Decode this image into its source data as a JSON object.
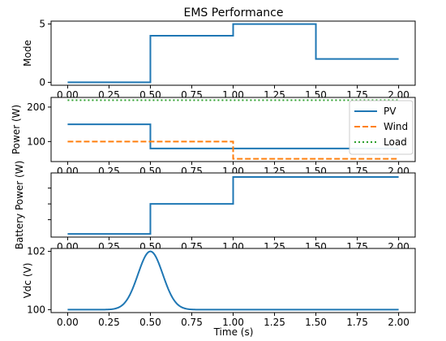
{
  "chart_data": {
    "type": "line",
    "title": "EMS Performance",
    "xlabel": "Time (s)",
    "xlim": [
      -0.1,
      2.1
    ],
    "x_ticks": [
      "0.00",
      "0.25",
      "0.50",
      "0.75",
      "1.00",
      "1.25",
      "1.50",
      "1.75",
      "2.00"
    ],
    "x_tick_values": [
      0,
      0.25,
      0.5,
      0.75,
      1.0,
      1.25,
      1.5,
      1.75,
      2.0
    ],
    "grid": false,
    "subplots": [
      {
        "ylabel": "Mode",
        "ylim": [
          -0.25,
          5.25
        ],
        "y_ticks": [
          0,
          5
        ],
        "y_tick_labels": [
          "0",
          "5"
        ],
        "series": [
          {
            "color": "#1f77b4",
            "style": "solid",
            "x": [
              0,
              0.5,
              0.5,
              1.0,
              1.0,
              1.5,
              1.5,
              2.0
            ],
            "y": [
              0,
              0,
              4,
              4,
              5,
              5,
              2,
              2
            ]
          }
        ]
      },
      {
        "ylabel": "Power (W)",
        "ylim": [
          42,
          228
        ],
        "y_ticks": [
          100,
          200
        ],
        "y_tick_labels": [
          "100",
          "200"
        ],
        "legend": {
          "position": "right",
          "entries": [
            "PV",
            "Wind",
            "Load"
          ]
        },
        "series": [
          {
            "name": "PV",
            "color": "#1f77b4",
            "style": "solid",
            "x": [
              0,
              0.5,
              0.5,
              2.0
            ],
            "y": [
              150,
              150,
              80,
              80
            ]
          },
          {
            "name": "Wind",
            "color": "#ff7f0e",
            "style": "dashed",
            "x": [
              0,
              1.0,
              1.0,
              2.0
            ],
            "y": [
              100,
              100,
              50,
              50
            ]
          },
          {
            "name": "Load",
            "color": "#2ca02c",
            "style": "dotted",
            "x": [
              0,
              2.0
            ],
            "y": [
              220,
              220
            ]
          }
        ]
      },
      {
        "ylabel": "Battery Power (W)",
        "ylim": [
          -105,
          98
        ],
        "y_ticks": [
          -50,
          0,
          50
        ],
        "y_tick_labels": [],
        "series": [
          {
            "color": "#1f77b4",
            "style": "solid",
            "x": [
              0,
              0.5,
              0.5,
              1.0,
              1.0,
              2.0
            ],
            "y": [
              -95,
              -95,
              0,
              0,
              85,
              85
            ]
          }
        ]
      },
      {
        "ylabel": "Vdc (V)",
        "ylim": [
          99.9,
          102.1
        ],
        "y_ticks": [
          100,
          102
        ],
        "y_tick_labels": [
          "100",
          "102"
        ],
        "series": [
          {
            "color": "#1f77b4",
            "style": "solid",
            "gaussian": {
              "base": 100,
              "amp": 2,
              "center": 0.5,
              "sigma": 0.075,
              "x0": 0,
              "x1": 2.0
            }
          }
        ]
      }
    ]
  }
}
